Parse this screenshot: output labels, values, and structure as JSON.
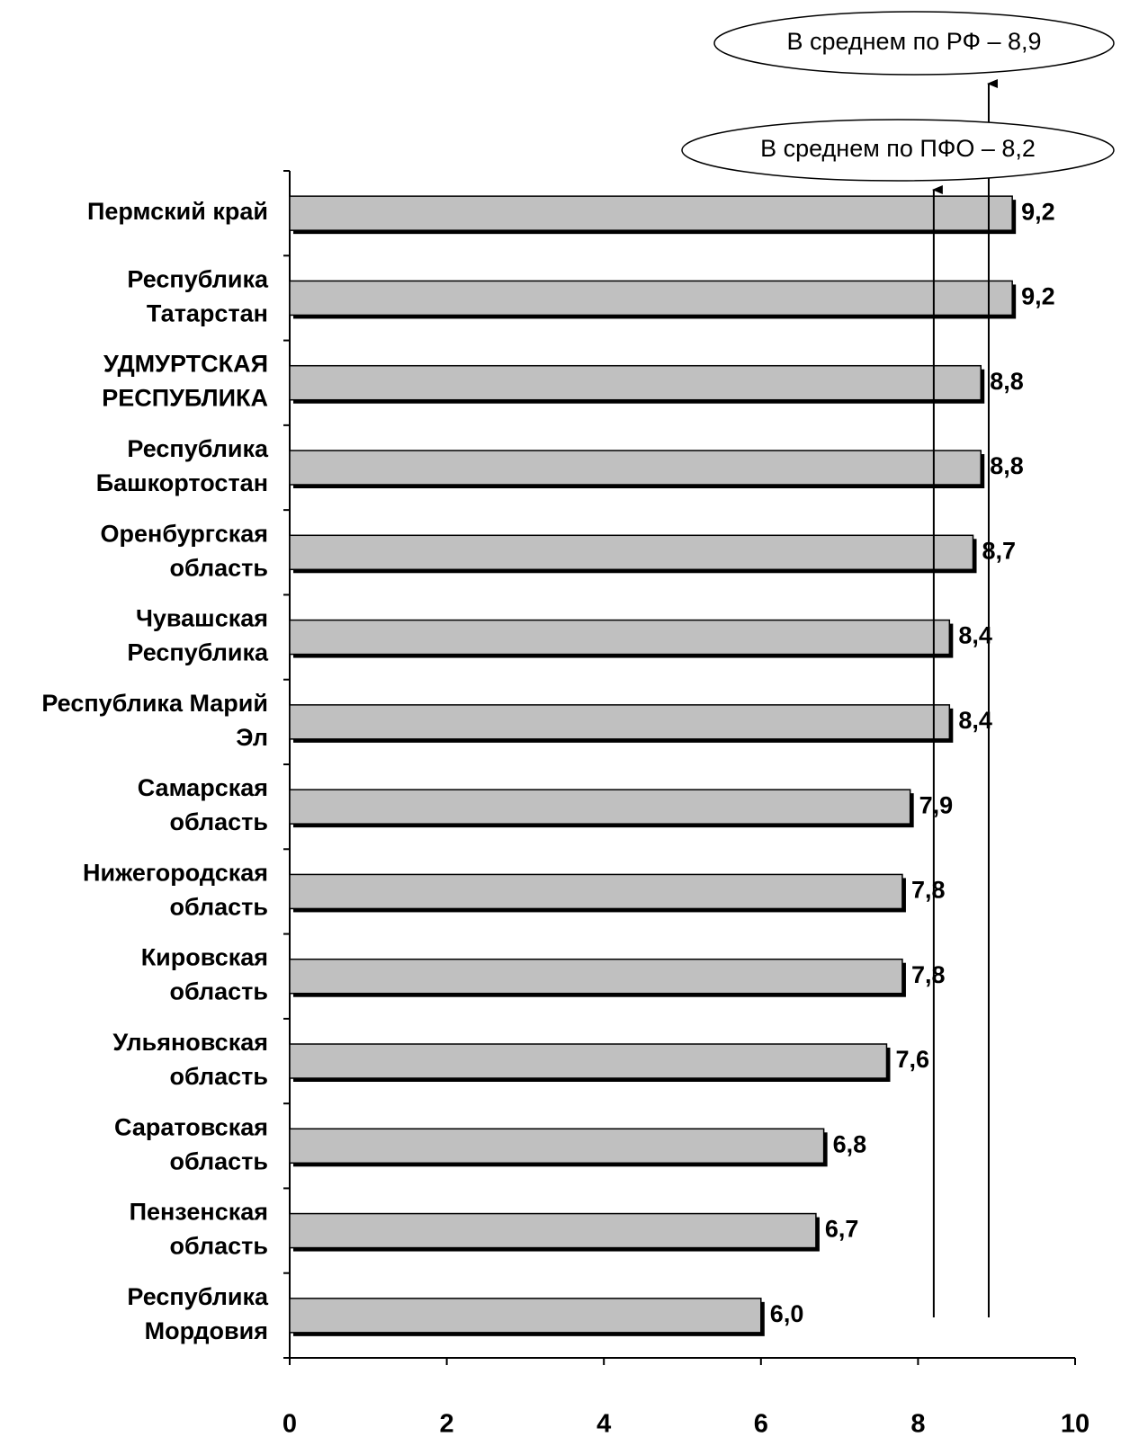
{
  "chart_data": {
    "type": "barh",
    "categories": [
      [
        "Пермский край"
      ],
      [
        "Республика",
        "Татарстан"
      ],
      [
        "УДМУРТСКАЯ",
        "РЕСПУБЛИКА"
      ],
      [
        "Республика",
        "Башкортостан"
      ],
      [
        "Оренбургская",
        "область"
      ],
      [
        "Чувашская",
        "Республика"
      ],
      [
        "Республика Марий",
        "Эл"
      ],
      [
        "Самарская",
        "область"
      ],
      [
        "Нижегородская",
        "область"
      ],
      [
        "Кировская",
        "область"
      ],
      [
        "Ульяновская",
        "область"
      ],
      [
        "Саратовская",
        "область"
      ],
      [
        "Пензенская",
        "область"
      ],
      [
        "Республика",
        "Мордовия"
      ]
    ],
    "values": [
      9.2,
      9.2,
      8.8,
      8.8,
      8.7,
      8.4,
      8.4,
      7.9,
      7.8,
      7.8,
      7.6,
      6.8,
      6.7,
      6.0
    ],
    "value_labels": [
      "9,2",
      "9,2",
      "8,8",
      "8,8",
      "8,7",
      "8,4",
      "8,4",
      "7,9",
      "7,8",
      "7,8",
      "7,6",
      "6,8",
      "6,7",
      "6,0"
    ],
    "color": "#c0c0c0",
    "xlim": [
      0,
      10
    ],
    "xticks": [
      0,
      2,
      4,
      6,
      8,
      10
    ],
    "reference_lines": [
      {
        "label": "В среднем по РФ – 8,9",
        "value": 8.9
      },
      {
        "label": "В среднем по ПФО – 8,2",
        "value": 8.2
      }
    ]
  }
}
